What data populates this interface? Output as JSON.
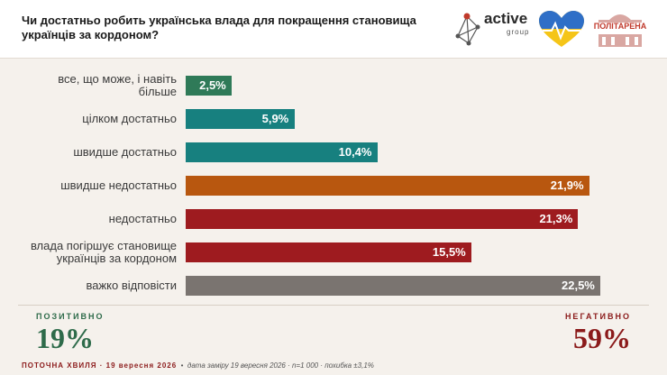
{
  "title": "Чи достатньо робить українська влада для покращення становища українців за кордоном?",
  "logos": {
    "active": "active",
    "active_sub": "group",
    "politarena": "ПОЛІТАРЕНА"
  },
  "chart_data": {
    "type": "bar",
    "orientation": "horizontal",
    "categories": [
      "все, що може, і навіть більше",
      "цілком достатньо",
      "швидше достатньо",
      "швидше недостатньо",
      "недостатньо",
      "влада погіршує становище українців за кордоном",
      "важко відповісти"
    ],
    "values": [
      2.5,
      5.9,
      10.4,
      21.9,
      21.3,
      15.5,
      22.5
    ],
    "value_labels": [
      "2,5%",
      "5,9%",
      "10,4%",
      "21,9%",
      "21,3%",
      "15,5%",
      "22,5%"
    ],
    "colors": [
      "#2f7a58",
      "#17807f",
      "#17807f",
      "#b8570f",
      "#9e1b1f",
      "#9e1b1f",
      "#7a7470"
    ],
    "xlim": [
      0,
      22.5
    ]
  },
  "summary": {
    "positive_label": "ПОЗИТИВНО",
    "positive_value": "19%",
    "negative_label": "НЕГАТИВНО",
    "negative_value": "59%"
  },
  "footer": {
    "wave": "ПОТОЧНА ХВИЛЯ · 19 вересня 2026",
    "dot": "•",
    "meta": "дата заміру 19 вересня 2026 · n=1 000 · похибка ±3,1%"
  }
}
